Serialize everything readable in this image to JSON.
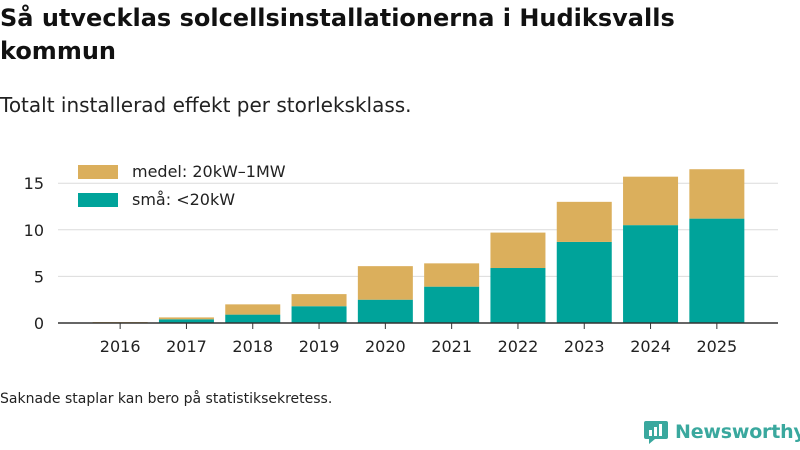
{
  "title": "Så utvecklas solcellsinstallationerna i Hudiksvalls kommun",
  "subtitle": "Totalt installerad effekt per storleksklass.",
  "footnote": "Saknade staplar kan bero på statistiksekretess.",
  "brand": {
    "name": "Newsworthy",
    "icon": "newsworthy-logo-icon"
  },
  "colors": {
    "small": "#00a39a",
    "medium": "#dbaf5c",
    "grid": "#dcdcdc",
    "axis": "#333333"
  },
  "chart_data": {
    "type": "bar",
    "stacked": true,
    "categories": [
      "2016",
      "2017",
      "2018",
      "2019",
      "2020",
      "2021",
      "2022",
      "2023",
      "2024",
      "2025"
    ],
    "series": [
      {
        "name": "små: <20kW",
        "key": "small",
        "values": [
          0.0,
          0.4,
          0.9,
          1.8,
          2.5,
          3.9,
          5.9,
          8.7,
          10.5,
          11.2
        ]
      },
      {
        "name": "medel: 20kW–1MW",
        "key": "medium",
        "values": [
          0.1,
          0.2,
          1.1,
          1.3,
          3.6,
          2.5,
          3.8,
          4.3,
          5.2,
          5.3
        ]
      }
    ],
    "legend": [
      {
        "label": "medel: 20kW–1MW",
        "key": "medium"
      },
      {
        "label": "små: <20kW",
        "key": "small"
      }
    ],
    "yticks": [
      0,
      5,
      10,
      15
    ],
    "ylim": [
      0,
      17.5
    ],
    "xlabel": "",
    "ylabel": "",
    "legend_position": "top-left"
  }
}
